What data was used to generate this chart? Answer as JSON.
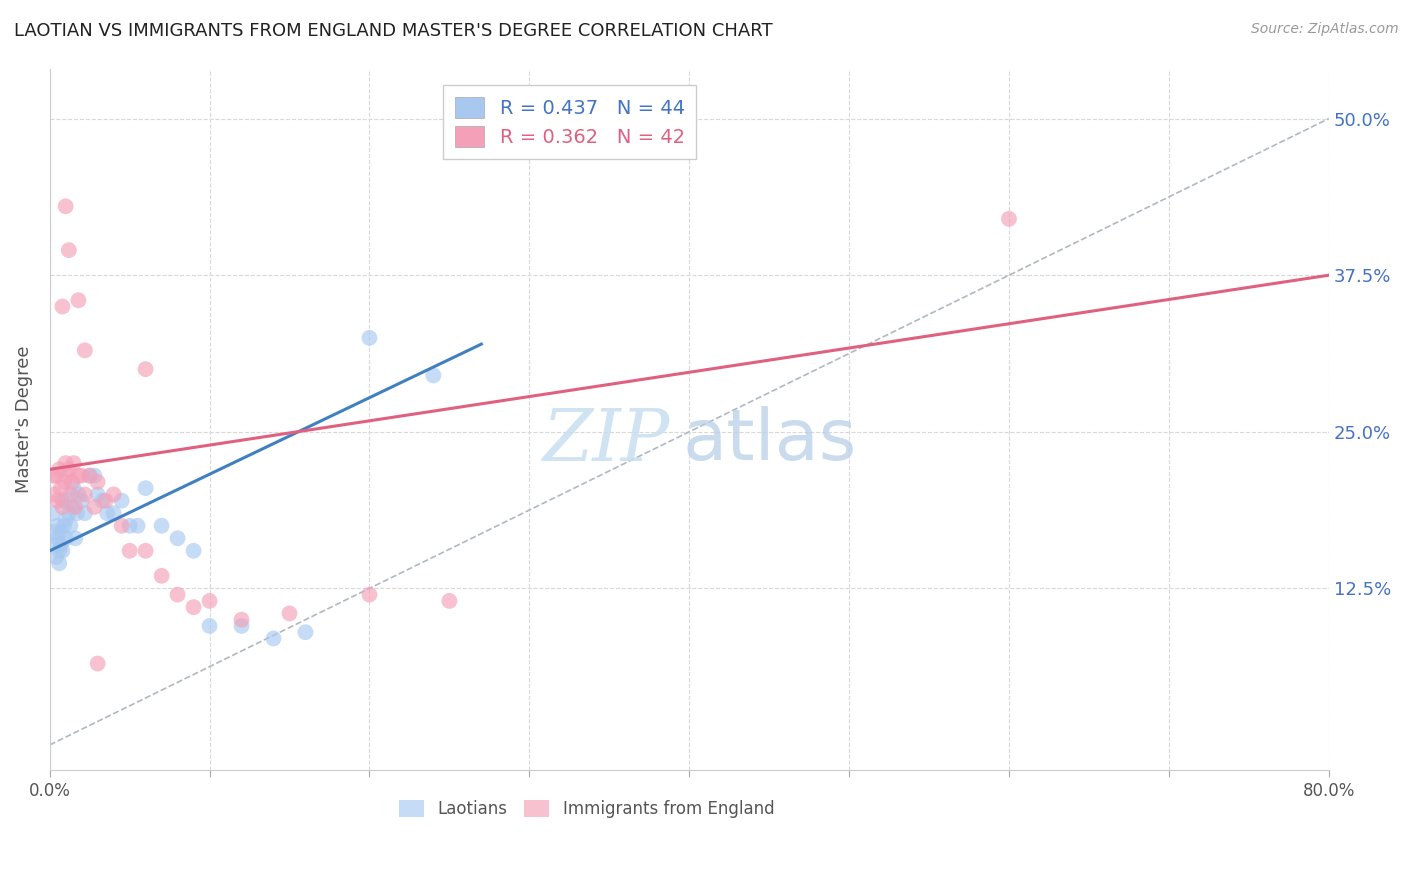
{
  "title": "LAOTIAN VS IMMIGRANTS FROM ENGLAND MASTER'S DEGREE CORRELATION CHART",
  "source": "Source: ZipAtlas.com",
  "ylabel": "Master's Degree",
  "xlim": [
    0.0,
    0.8
  ],
  "ylim": [
    -0.02,
    0.54
  ],
  "xticks": [
    0.0,
    0.1,
    0.2,
    0.3,
    0.4,
    0.5,
    0.6,
    0.7,
    0.8
  ],
  "xtick_labels_show": [
    "0.0%",
    "80.0%"
  ],
  "yticks_right": [
    0.125,
    0.25,
    0.375,
    0.5
  ],
  "ytick_labels_right": [
    "12.5%",
    "25.0%",
    "37.5%",
    "50.0%"
  ],
  "blue_color": "#a8c8f0",
  "pink_color": "#f4a0b8",
  "blue_line_color": "#4080c0",
  "pink_line_color": "#e06080",
  "blue_r": "0.437",
  "blue_n": "44",
  "pink_r": "0.362",
  "pink_n": "42",
  "blue_line": [
    [
      0.0,
      0.155
    ],
    [
      0.27,
      0.32
    ]
  ],
  "pink_line": [
    [
      0.0,
      0.22
    ],
    [
      0.8,
      0.375
    ]
  ],
  "diag_line": [
    [
      0.0,
      0.0
    ],
    [
      0.8,
      0.5
    ]
  ],
  "blue_x": [
    0.002,
    0.003,
    0.004,
    0.004,
    0.005,
    0.005,
    0.006,
    0.006,
    0.007,
    0.007,
    0.008,
    0.008,
    0.009,
    0.01,
    0.01,
    0.011,
    0.012,
    0.013,
    0.014,
    0.015,
    0.016,
    0.017,
    0.018,
    0.02,
    0.022,
    0.025,
    0.028,
    0.03,
    0.033,
    0.036,
    0.04,
    0.045,
    0.05,
    0.055,
    0.06,
    0.07,
    0.08,
    0.09,
    0.1,
    0.12,
    0.14,
    0.16,
    0.2,
    0.24
  ],
  "blue_y": [
    0.185,
    0.17,
    0.16,
    0.15,
    0.175,
    0.165,
    0.155,
    0.145,
    0.17,
    0.16,
    0.195,
    0.155,
    0.175,
    0.18,
    0.165,
    0.195,
    0.185,
    0.175,
    0.19,
    0.205,
    0.165,
    0.185,
    0.2,
    0.195,
    0.185,
    0.215,
    0.215,
    0.2,
    0.195,
    0.185,
    0.185,
    0.195,
    0.175,
    0.175,
    0.205,
    0.175,
    0.165,
    0.155,
    0.095,
    0.095,
    0.085,
    0.09,
    0.325,
    0.295
  ],
  "pink_x": [
    0.002,
    0.003,
    0.004,
    0.005,
    0.006,
    0.007,
    0.008,
    0.009,
    0.01,
    0.011,
    0.012,
    0.013,
    0.014,
    0.015,
    0.016,
    0.018,
    0.02,
    0.022,
    0.025,
    0.028,
    0.03,
    0.035,
    0.04,
    0.045,
    0.05,
    0.06,
    0.07,
    0.08,
    0.09,
    0.1,
    0.12,
    0.15,
    0.2,
    0.25,
    0.01,
    0.012,
    0.018,
    0.022,
    0.008,
    0.06,
    0.6,
    0.03
  ],
  "pink_y": [
    0.215,
    0.2,
    0.215,
    0.195,
    0.22,
    0.205,
    0.19,
    0.21,
    0.225,
    0.215,
    0.22,
    0.2,
    0.21,
    0.225,
    0.19,
    0.215,
    0.215,
    0.2,
    0.215,
    0.19,
    0.21,
    0.195,
    0.2,
    0.175,
    0.155,
    0.155,
    0.135,
    0.12,
    0.11,
    0.115,
    0.1,
    0.105,
    0.12,
    0.115,
    0.43,
    0.395,
    0.355,
    0.315,
    0.35,
    0.3,
    0.42,
    0.065
  ],
  "watermark_zip_color": "#c8dff0",
  "watermark_atlas_color": "#b8cfe8",
  "grid_color": "#d8d8d8",
  "spine_color": "#cccccc"
}
